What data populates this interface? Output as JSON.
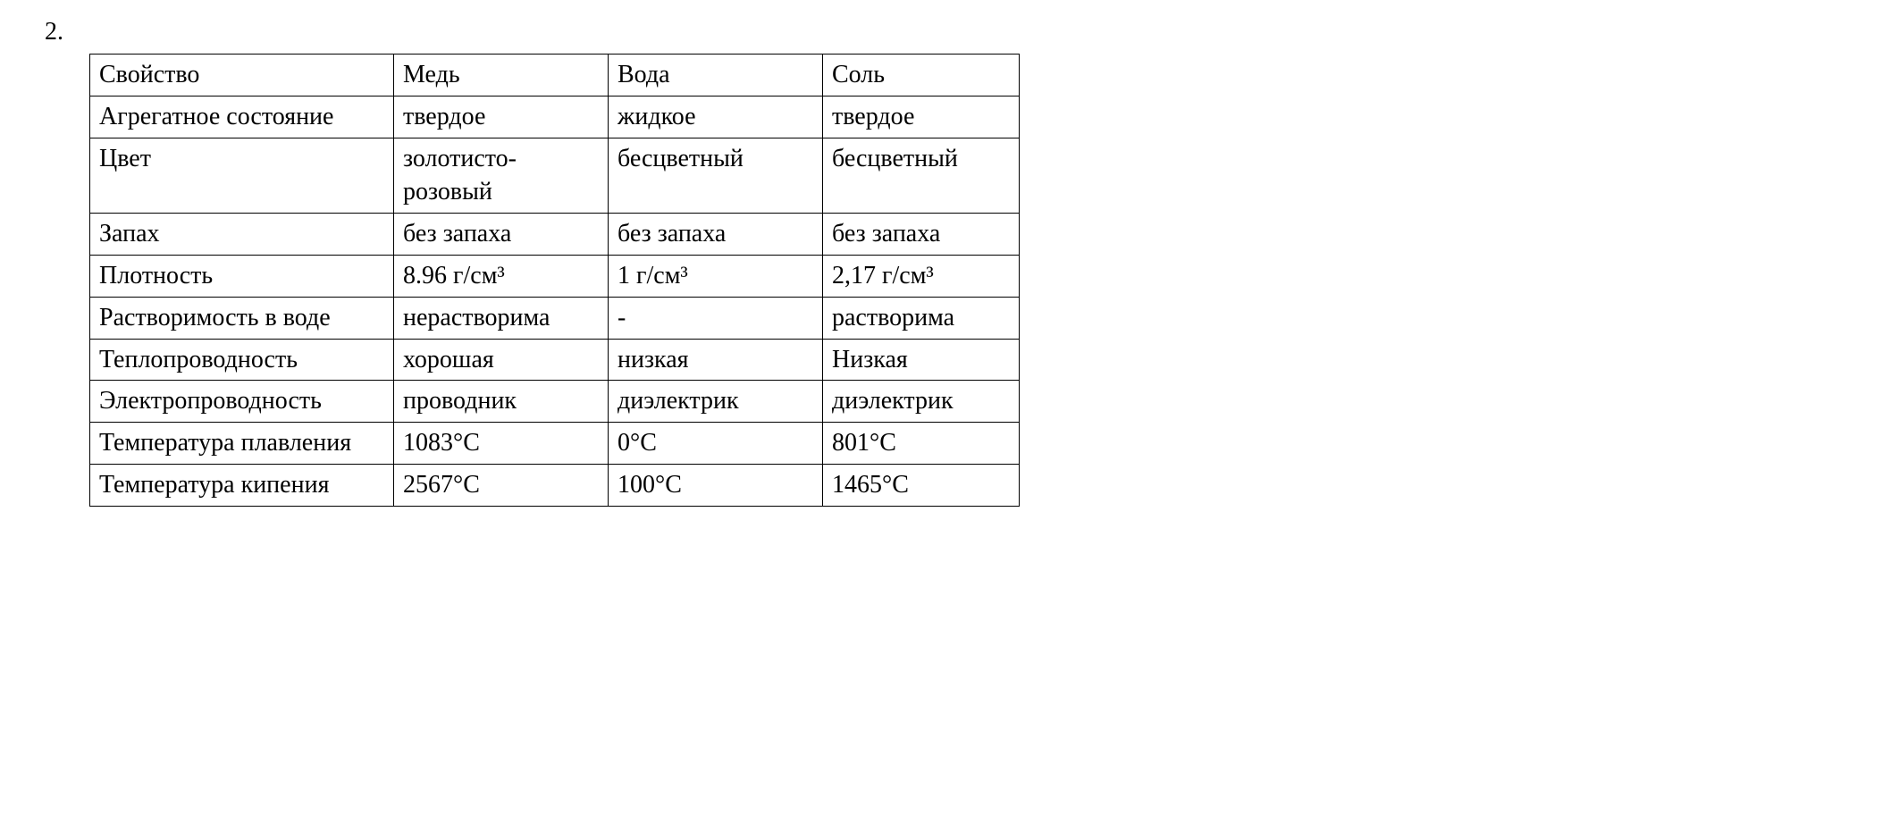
{
  "itemNumber": "2.",
  "table": {
    "headers": {
      "property": "Свойство",
      "copper": "Медь",
      "water": "Вода",
      "salt": "Соль"
    },
    "rows": {
      "state": {
        "label": "Агрегатное состояние",
        "copper": "твердое",
        "water": "жидкое",
        "salt": "твердое"
      },
      "color": {
        "label": "Цвет",
        "copper": "золотисто-розовый",
        "water": "бесцветный",
        "salt": "бесцветный"
      },
      "smell": {
        "label": "Запах",
        "copper": "без запаха",
        "water": "без запаха",
        "salt": "без запаха"
      },
      "density": {
        "label": "Плотность",
        "copper": "8.96 г/см³",
        "water": "1 г/см³",
        "salt": "2,17 г/см³"
      },
      "solubility": {
        "label": "Растворимость в воде",
        "copper": "нерастворима",
        "water": "-",
        "salt": "растворима"
      },
      "thermalConductivity": {
        "label": "Теплопроводность",
        "copper": "хорошая",
        "water": "низкая",
        "salt": "Низкая"
      },
      "electricalConductivity": {
        "label": "Электропроводность",
        "copper": "проводник",
        "water": "диэлектрик",
        "salt": "диэлектрик"
      },
      "meltingPoint": {
        "label": "Температура плавления",
        "copper": "1083°C",
        "water": "0°C",
        "salt": "801°C"
      },
      "boilingPoint": {
        "label": "Температура кипения",
        "copper": "2567°C",
        "water": "100°C",
        "salt": "1465°C"
      }
    }
  },
  "styling": {
    "fontFamily": "Times New Roman",
    "fontSize": 28,
    "textColor": "#000000",
    "backgroundColor": "#ffffff",
    "borderColor": "#000000",
    "borderWidth": 1.5,
    "columnWidths": {
      "property": 340,
      "copper": 240,
      "water": 240,
      "salt": 220
    }
  }
}
